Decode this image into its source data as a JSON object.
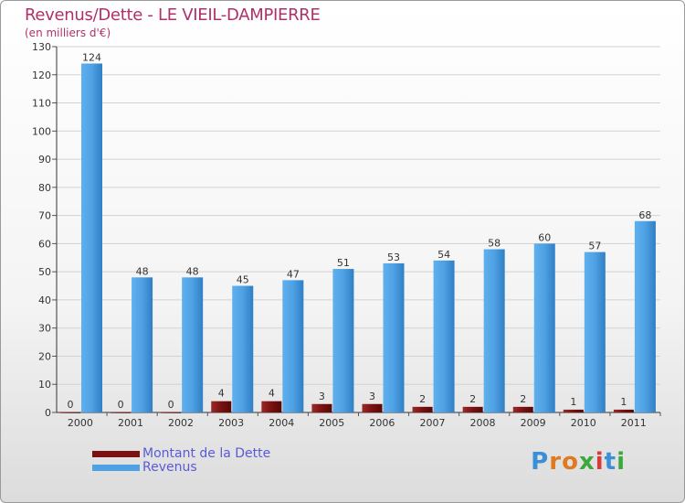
{
  "chart_data": {
    "type": "bar",
    "title": "Revenus/Dette - LE VIEIL-DAMPIERRE",
    "subtitle": "(en milliers d'€)",
    "categories": [
      "2000",
      "2001",
      "2002",
      "2003",
      "2004",
      "2005",
      "2006",
      "2007",
      "2008",
      "2009",
      "2010",
      "2011"
    ],
    "series": [
      {
        "name": "Montant de la Dette",
        "color": "#7a1010",
        "values": [
          0,
          0,
          0,
          4,
          4,
          3,
          3,
          2,
          2,
          2,
          1,
          1
        ]
      },
      {
        "name": "Revenus",
        "color": "#4ea1e3",
        "values": [
          124,
          48,
          48,
          45,
          47,
          51,
          53,
          54,
          58,
          60,
          57,
          68
        ]
      }
    ],
    "ylim": [
      0,
      130
    ],
    "yticks": [
      0,
      10,
      20,
      30,
      40,
      50,
      60,
      70,
      80,
      90,
      100,
      110,
      120,
      130
    ],
    "grid": true,
    "legend_position": "bottom-left"
  },
  "logo": {
    "letters": [
      "P",
      "r",
      "o",
      "x",
      "i",
      "t",
      "i"
    ],
    "colors": [
      "#3b8fd6",
      "#e07a1f",
      "#e07a1f",
      "#3aa83a",
      "#d83a3a",
      "#3b8fd6",
      "#3aa83a"
    ]
  }
}
